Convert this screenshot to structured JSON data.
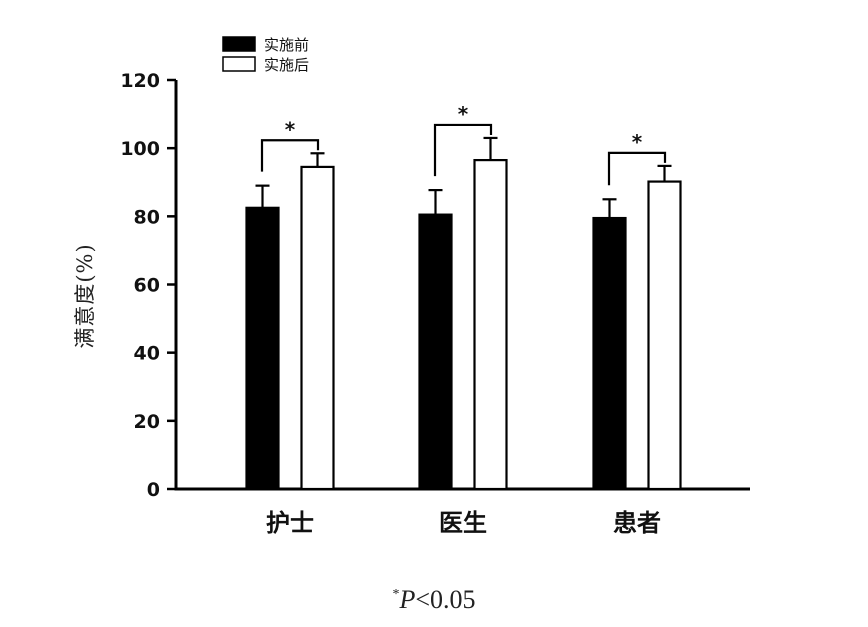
{
  "chart_data": {
    "type": "bar",
    "categories": [
      "护士",
      "医生",
      "患者"
    ],
    "series": [
      {
        "name": "实施前",
        "values": [
          82.5,
          80.5,
          79.5
        ],
        "errors": [
          6.5,
          7.2,
          5.5
        ],
        "color": "#000000"
      },
      {
        "name": "实施后",
        "values": [
          94.5,
          96.5,
          90.2
        ],
        "errors": [
          4.0,
          6.5,
          4.6
        ],
        "color": "#ffffff"
      }
    ],
    "ylabel": "满意度(%)",
    "xlabel": "",
    "ylim": [
      0,
      120
    ],
    "yticks": [
      "0",
      "20",
      "40",
      "60",
      "80",
      "100",
      "120"
    ],
    "significance_marker": "*",
    "legend_position": "top-left",
    "grid": false
  },
  "footnote": {
    "marker": "*",
    "p": "P",
    "rest": "<0.05"
  }
}
